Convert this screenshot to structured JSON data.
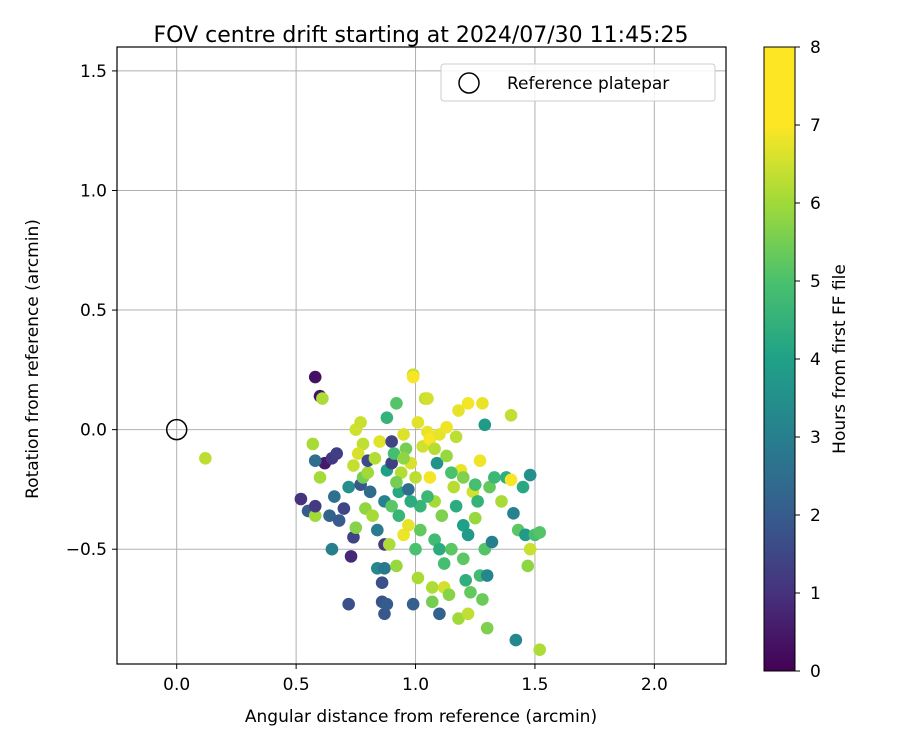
{
  "chart_data": {
    "type": "scatter",
    "title": "FOV centre drift starting at 2024/07/30 11:45:25",
    "xlabel": "Angular distance from reference (arcmin)",
    "ylabel": "Rotation from reference (arcmin)",
    "xlim": [
      -0.25,
      2.3
    ],
    "ylim": [
      -0.98,
      1.6
    ],
    "xticks": [
      0.0,
      0.5,
      1.0,
      1.5,
      2.0
    ],
    "xtick_labels": [
      "0.0",
      "0.5",
      "1.0",
      "1.5",
      "2.0"
    ],
    "yticks": [
      -0.5,
      0.0,
      0.5,
      1.0,
      1.5
    ],
    "ytick_labels": [
      "−0.5",
      "0.0",
      "0.5",
      "1.0",
      "1.5"
    ],
    "grid": true,
    "legend": {
      "position": "top-right",
      "entries": [
        "Reference platepar"
      ]
    },
    "reference_point": {
      "x": 0.0,
      "y": 0.0,
      "label": "Reference platepar"
    },
    "colorbar": {
      "label": "Hours from first FF file",
      "range": [
        0,
        8
      ],
      "ticks": [
        0,
        1,
        2,
        3,
        4,
        5,
        6,
        7,
        8
      ],
      "tick_labels": [
        "0",
        "1",
        "2",
        "3",
        "4",
        "5",
        "6",
        "7",
        "8"
      ],
      "colormap": "viridis"
    },
    "points": [
      [
        0.58,
        0.22,
        0.3
      ],
      [
        0.6,
        0.14,
        0.4
      ],
      [
        0.61,
        0.13,
        6.3
      ],
      [
        0.57,
        -0.06,
        6.2
      ],
      [
        0.12,
        -0.12,
        6.6
      ],
      [
        0.52,
        -0.29,
        1.0
      ],
      [
        0.55,
        -0.34,
        2.0
      ],
      [
        0.58,
        -0.36,
        6.0
      ],
      [
        0.58,
        -0.32,
        1.2
      ],
      [
        0.6,
        -0.2,
        6.1
      ],
      [
        0.62,
        -0.14,
        0.5
      ],
      [
        0.58,
        -0.13,
        2.5
      ],
      [
        0.65,
        -0.12,
        1.1
      ],
      [
        0.67,
        -0.1,
        1.3
      ],
      [
        0.64,
        -0.36,
        2.2
      ],
      [
        0.65,
        -0.5,
        3.0
      ],
      [
        0.66,
        -0.28,
        2.6
      ],
      [
        0.68,
        -0.38,
        2.0
      ],
      [
        0.7,
        -0.33,
        1.5
      ],
      [
        0.72,
        -0.73,
        1.7
      ],
      [
        0.73,
        -0.53,
        0.8
      ],
      [
        0.74,
        -0.45,
        1.4
      ],
      [
        0.72,
        -0.24,
        3.5
      ],
      [
        0.75,
        -0.41,
        5.7
      ],
      [
        0.74,
        -0.15,
        6.8
      ],
      [
        0.75,
        0.0,
        7.0
      ],
      [
        0.77,
        0.03,
        6.9
      ],
      [
        0.78,
        -0.06,
        6.7
      ],
      [
        0.77,
        -0.23,
        1.9
      ],
      [
        0.78,
        -0.2,
        5.5
      ],
      [
        0.76,
        -0.1,
        7.2
      ],
      [
        0.79,
        -0.33,
        5.8
      ],
      [
        0.8,
        -0.18,
        6.0
      ],
      [
        0.81,
        -0.26,
        2.4
      ],
      [
        0.8,
        -0.13,
        1.6
      ],
      [
        0.82,
        -0.36,
        6.1
      ],
      [
        0.83,
        -0.12,
        6.4
      ],
      [
        0.84,
        -0.42,
        2.9
      ],
      [
        0.84,
        -0.58,
        3.3
      ],
      [
        0.85,
        -0.05,
        7.4
      ],
      [
        0.86,
        -0.64,
        1.7
      ],
      [
        0.86,
        -0.72,
        1.8
      ],
      [
        0.87,
        -0.77,
        1.9
      ],
      [
        0.87,
        -0.48,
        1.2
      ],
      [
        0.87,
        -0.58,
        2.8
      ],
      [
        0.87,
        -0.3,
        3.1
      ],
      [
        0.88,
        -0.17,
        4.0
      ],
      [
        0.88,
        0.05,
        4.5
      ],
      [
        0.88,
        -0.73,
        2.0
      ],
      [
        0.89,
        -0.48,
        6.3
      ],
      [
        0.9,
        -0.14,
        1.3
      ],
      [
        0.9,
        -0.05,
        1.4
      ],
      [
        0.9,
        -0.32,
        5.2
      ],
      [
        0.91,
        -0.1,
        4.9
      ],
      [
        0.92,
        0.11,
        5.1
      ],
      [
        0.92,
        -0.57,
        5.9
      ],
      [
        0.93,
        -0.26,
        4.2
      ],
      [
        0.93,
        -0.36,
        4.6
      ],
      [
        0.94,
        -0.18,
        6.4
      ],
      [
        0.95,
        -0.44,
        7.7
      ],
      [
        0.95,
        -0.02,
        7.3
      ],
      [
        0.96,
        -0.08,
        5.5
      ],
      [
        0.97,
        -0.25,
        2.5
      ],
      [
        0.97,
        -0.4,
        7.5
      ],
      [
        0.98,
        -0.14,
        7.2
      ],
      [
        0.99,
        0.23,
        6.8
      ],
      [
        0.99,
        0.22,
        7.9
      ],
      [
        0.99,
        -0.73,
        2.1
      ],
      [
        1.0,
        -0.5,
        5.0
      ],
      [
        1.0,
        -0.2,
        6.6
      ],
      [
        1.01,
        -0.62,
        6.2
      ],
      [
        1.01,
        0.03,
        7.4
      ],
      [
        1.02,
        -0.32,
        4.6
      ],
      [
        1.02,
        -0.42,
        5.3
      ],
      [
        1.03,
        -0.07,
        7.0
      ],
      [
        1.04,
        0.13,
        6.7
      ],
      [
        1.05,
        0.13,
        7.1
      ],
      [
        1.05,
        -0.01,
        7.6
      ],
      [
        1.06,
        -0.04,
        7.9
      ],
      [
        1.06,
        -0.2,
        7.8
      ],
      [
        1.07,
        -0.66,
        6.3
      ],
      [
        1.07,
        -0.72,
        5.5
      ],
      [
        1.08,
        -0.46,
        4.8
      ],
      [
        1.08,
        -0.3,
        6.1
      ],
      [
        1.09,
        -0.14,
        3.6
      ],
      [
        1.1,
        -0.77,
        2.2
      ],
      [
        1.1,
        -0.5,
        4.3
      ],
      [
        1.1,
        -0.02,
        7.5
      ],
      [
        1.11,
        -0.36,
        5.6
      ],
      [
        1.12,
        -0.56,
        4.9
      ],
      [
        1.12,
        -0.66,
        7.1
      ],
      [
        1.13,
        0.01,
        7.7
      ],
      [
        1.14,
        -0.69,
        5.7
      ],
      [
        1.15,
        -0.5,
        5.2
      ],
      [
        1.16,
        -0.24,
        6.5
      ],
      [
        1.17,
        -0.32,
        4.3
      ],
      [
        1.17,
        -0.03,
        6.6
      ],
      [
        1.18,
        -0.79,
        6.0
      ],
      [
        1.18,
        0.08,
        7.5
      ],
      [
        1.19,
        -0.17,
        7.6
      ],
      [
        1.2,
        -0.4,
        4.0
      ],
      [
        1.2,
        -0.54,
        5.2
      ],
      [
        1.21,
        -0.63,
        4.4
      ],
      [
        1.22,
        -0.77,
        6.7
      ],
      [
        1.22,
        -0.44,
        3.8
      ],
      [
        1.22,
        0.11,
        7.8
      ],
      [
        1.23,
        -0.68,
        5.3
      ],
      [
        1.24,
        -0.26,
        7.1
      ],
      [
        1.25,
        -0.37,
        5.9
      ],
      [
        1.26,
        -0.3,
        4.5
      ],
      [
        1.27,
        -0.13,
        7.7
      ],
      [
        1.27,
        -0.61,
        4.8
      ],
      [
        1.28,
        0.11,
        7.6
      ],
      [
        1.28,
        -0.71,
        5.4
      ],
      [
        1.29,
        -0.5,
        5.1
      ],
      [
        1.29,
        0.02,
        3.8
      ],
      [
        1.3,
        -0.83,
        5.6
      ],
      [
        1.3,
        -0.61,
        3.2
      ],
      [
        1.31,
        -0.24,
        5.3
      ],
      [
        1.32,
        -0.47,
        3.0
      ],
      [
        1.33,
        -0.2,
        4.7
      ],
      [
        1.36,
        -0.3,
        6.2
      ],
      [
        1.38,
        -0.2,
        4.4
      ],
      [
        1.4,
        0.06,
        6.7
      ],
      [
        1.4,
        -0.21,
        7.9
      ],
      [
        1.41,
        -0.35,
        3.1
      ],
      [
        1.42,
        -0.88,
        3.2
      ],
      [
        1.43,
        -0.42,
        5.2
      ],
      [
        1.45,
        -0.24,
        4.2
      ],
      [
        1.46,
        -0.44,
        3.8
      ],
      [
        1.47,
        -0.57,
        5.8
      ],
      [
        1.48,
        -0.5,
        6.9
      ],
      [
        1.48,
        -0.19,
        3.5
      ],
      [
        1.5,
        -0.44,
        4.9
      ],
      [
        1.52,
        -0.92,
        6.3
      ],
      [
        1.52,
        -0.43,
        5.1
      ],
      [
        1.25,
        -0.23,
        4.9
      ],
      [
        1.15,
        -0.18,
        5.0
      ],
      [
        1.05,
        -0.28,
        4.7
      ],
      [
        0.98,
        -0.3,
        4.3
      ],
      [
        0.95,
        -0.12,
        5.8
      ],
      [
        1.13,
        -0.11,
        5.9
      ],
      [
        1.2,
        -0.2,
        5.6
      ],
      [
        1.08,
        -0.08,
        6.5
      ],
      [
        0.92,
        -0.22,
        5.5
      ]
    ]
  }
}
